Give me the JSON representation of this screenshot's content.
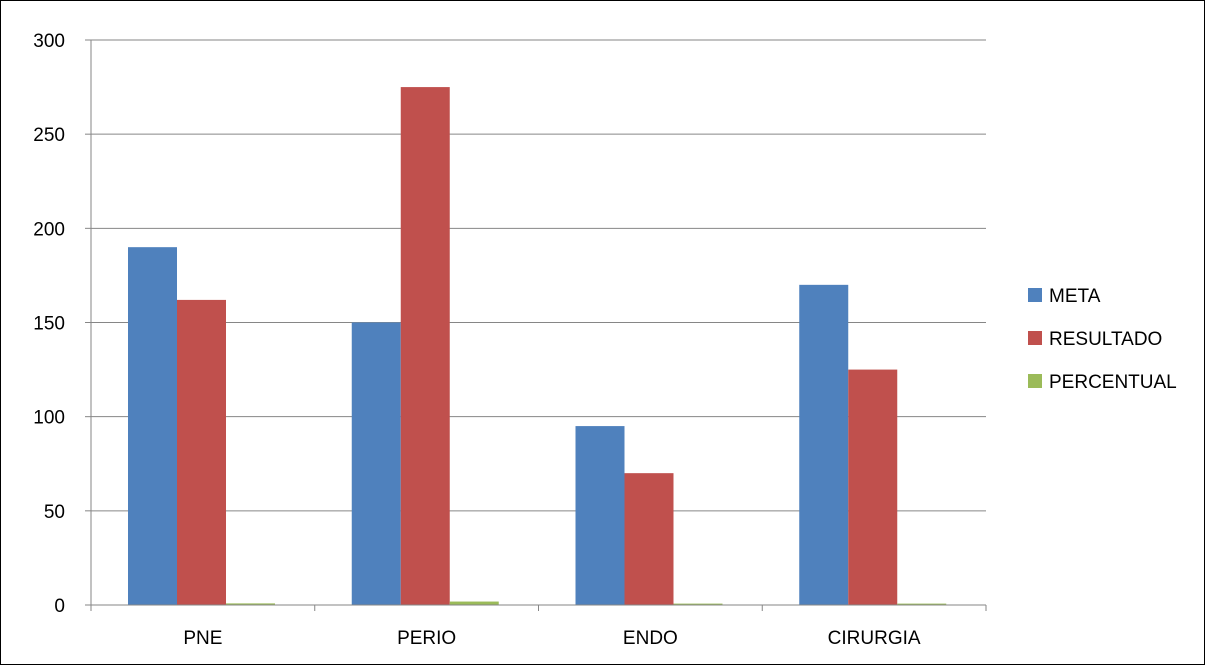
{
  "chart_data": {
    "type": "bar",
    "title": "",
    "xlabel": "",
    "ylabel": "",
    "categories": [
      "PNE",
      "PERIO",
      "ENDO",
      "CIRURGIA"
    ],
    "series": [
      {
        "name": "META",
        "color": "#4F81BD",
        "values": [
          190,
          150,
          95,
          170
        ]
      },
      {
        "name": "RESULTADO",
        "color": "#C0504D",
        "values": [
          162,
          275,
          70,
          125
        ]
      },
      {
        "name": "PERCENTUAL",
        "color": "#9BBB59",
        "values": [
          0.85,
          1.83,
          0.74,
          0.74
        ]
      }
    ],
    "ylim": [
      0,
      300
    ],
    "yticks": [
      0,
      50,
      100,
      150,
      200,
      250,
      300
    ],
    "grid": true,
    "legend_position": "right"
  }
}
